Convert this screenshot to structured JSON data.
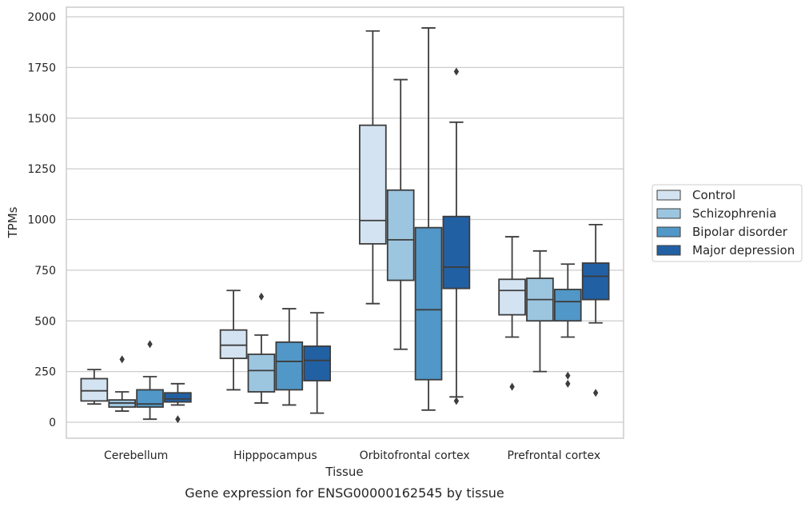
{
  "colors": {
    "series": [
      "#d3e3f1",
      "#9cc5df",
      "#5197c7",
      "#2260a4"
    ],
    "line": "#3d3d3d",
    "grid": "#cccccc",
    "frame": "#cccccc"
  },
  "chart_data": {
    "type": "box",
    "title": "",
    "caption": "Gene expression for ENSG00000162545 by tissue",
    "xlabel": "Tissue",
    "ylabel": "TPMs",
    "ylim": [
      -80,
      2050
    ],
    "yticks": [
      0,
      250,
      500,
      750,
      1000,
      1250,
      1500,
      1750,
      2000
    ],
    "grid": true,
    "legend_position": "right",
    "categories": [
      "Cerebellum",
      "Hipppocampus",
      "Orbitofrontal cortex",
      "Prefrontal cortex"
    ],
    "series": [
      {
        "name": "Control",
        "boxes": [
          {
            "whislo": 90,
            "q1": 105,
            "med": 155,
            "q3": 215,
            "whishi": 260,
            "fliers": []
          },
          {
            "whislo": 160,
            "q1": 315,
            "med": 380,
            "q3": 455,
            "whishi": 650,
            "fliers": []
          },
          {
            "whislo": 585,
            "q1": 880,
            "med": 995,
            "q3": 1465,
            "whishi": 1930,
            "fliers": []
          },
          {
            "whislo": 420,
            "q1": 530,
            "med": 650,
            "q3": 705,
            "whishi": 915,
            "fliers": [
              175
            ]
          }
        ]
      },
      {
        "name": "Schizophrenia",
        "boxes": [
          {
            "whislo": 55,
            "q1": 75,
            "med": 95,
            "q3": 110,
            "whishi": 150,
            "fliers": [
              310
            ]
          },
          {
            "whislo": 95,
            "q1": 150,
            "med": 255,
            "q3": 335,
            "whishi": 430,
            "fliers": [
              620
            ]
          },
          {
            "whislo": 360,
            "q1": 700,
            "med": 900,
            "q3": 1145,
            "whishi": 1690,
            "fliers": []
          },
          {
            "whislo": 250,
            "q1": 500,
            "med": 605,
            "q3": 710,
            "whishi": 845,
            "fliers": []
          }
        ]
      },
      {
        "name": "Bipolar disorder",
        "boxes": [
          {
            "whislo": 15,
            "q1": 75,
            "med": 90,
            "q3": 160,
            "whishi": 225,
            "fliers": [
              385
            ]
          },
          {
            "whislo": 85,
            "q1": 160,
            "med": 300,
            "q3": 395,
            "whishi": 560,
            "fliers": []
          },
          {
            "whislo": 60,
            "q1": 210,
            "med": 555,
            "q3": 960,
            "whishi": 1945,
            "fliers": []
          },
          {
            "whislo": 420,
            "q1": 500,
            "med": 595,
            "q3": 655,
            "whishi": 780,
            "fliers": [
              230,
              190
            ]
          }
        ]
      },
      {
        "name": "Major depression",
        "boxes": [
          {
            "whislo": 85,
            "q1": 100,
            "med": 115,
            "q3": 145,
            "whishi": 190,
            "fliers": [
              15
            ]
          },
          {
            "whislo": 45,
            "q1": 205,
            "med": 305,
            "q3": 375,
            "whishi": 540,
            "fliers": []
          },
          {
            "whislo": 125,
            "q1": 660,
            "med": 765,
            "q3": 1015,
            "whishi": 1480,
            "fliers": [
              1730,
              105
            ]
          },
          {
            "whislo": 490,
            "q1": 605,
            "med": 720,
            "q3": 785,
            "whishi": 975,
            "fliers": [
              145
            ]
          }
        ]
      }
    ]
  }
}
